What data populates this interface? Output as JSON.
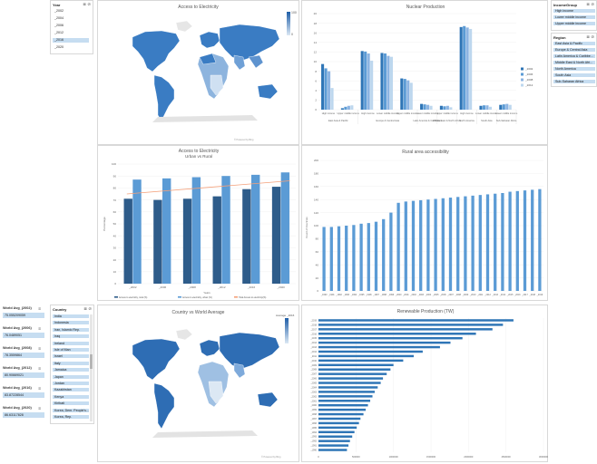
{
  "year_slicer": {
    "title": "Year",
    "items": [
      "_2002",
      "_2004",
      "_2006",
      "_2012",
      "_2016",
      "_2020"
    ],
    "selected_index": 4
  },
  "income_slicer": {
    "title": "IncomeGroup",
    "items": [
      "High income",
      "Lower middle income",
      "Upper middle income"
    ]
  },
  "region_slicer": {
    "title": "Region",
    "items": [
      "East Asia & Pacific",
      "Europe & Central Asia",
      "Latin America & Caribbe...",
      "Middle East & North Afri...",
      "North America",
      "South Asia",
      "Sub-Saharan Africa"
    ]
  },
  "country_slicer": {
    "title": "Country",
    "items": [
      "India",
      "Indonesia",
      "Iran, Islamic Rep.",
      "Iraq",
      "Ireland",
      "Isle of Man",
      "Israel",
      "Italy",
      "Jamaica",
      "Japan",
      "Jordan",
      "Kazakhstan",
      "Kenya",
      "Kiribati",
      "Korea, Dem. People's...",
      "Korea, Rep."
    ]
  },
  "world_avg_cards": [
    {
      "label": "World Avg_(2002)",
      "value": "75.055209059"
    },
    {
      "label": "World Avg_(2006)",
      "value": "76.0489051"
    },
    {
      "label": "World Avg_(2008)",
      "value": "78.3559864"
    },
    {
      "label": "World Avg_(2012)",
      "value": "80.90669021"
    },
    {
      "label": "World Avg_(2016)",
      "value": "83.87228544"
    },
    {
      "label": "World Avg_(2020)",
      "value": "86.63117828"
    }
  ],
  "map_top": {
    "title": "Access to Electricity",
    "legend_max": "100",
    "legend_min": "0"
  },
  "map_bottom": {
    "title": "Country vs World Average",
    "legend_label": "Average _2016"
  },
  "map_credit": "© Powered by Bing",
  "colors": {
    "primary": "#2e75b6",
    "light": "#9dc3e6",
    "dark": "#1f4e79",
    "trend": "#f4a07a",
    "select": "#c6ddf1"
  },
  "charts": {
    "nuclear": {
      "type": "bar",
      "title": "Nuclear Production",
      "categories": [
        "High income",
        "Upper middle income",
        "High income",
        "Lower middle income",
        "Upper middle income",
        "Lower middle income",
        "Upper middle income",
        "High income",
        "Lower middle income",
        "Lower middle income"
      ],
      "groups": [
        "East Asia & Pacific",
        "Europe & Central Asia",
        "Latin America & Caribbean",
        "Middle East & North Africa",
        "North America",
        "South Asia",
        "Sub-Saharan Africa"
      ],
      "group_spans": [
        2,
        3,
        1,
        1,
        1,
        1,
        1
      ],
      "series": [
        {
          "name": "_2002",
          "values": [
            9.5,
            0.3,
            12.2,
            11.8,
            6.5,
            1.2,
            0.8,
            17.2,
            0.8,
            1.0
          ]
        },
        {
          "name": "_2006",
          "values": [
            8.6,
            0.6,
            12.1,
            11.7,
            6.4,
            1.1,
            0.7,
            17.4,
            0.9,
            1.1
          ]
        },
        {
          "name": "_2008",
          "values": [
            8.0,
            0.8,
            11.7,
            11.2,
            6.1,
            1.0,
            0.8,
            17.1,
            0.9,
            1.2
          ]
        },
        {
          "name": "_2012",
          "values": [
            4.5,
            0.9,
            10.2,
            11.0,
            5.6,
            0.8,
            0.5,
            16.8,
            0.6,
            1.0
          ]
        }
      ],
      "yticks": [
        0,
        2,
        4,
        6,
        8,
        10,
        12,
        14,
        16,
        18,
        20
      ],
      "ylim": [
        0,
        20
      ]
    },
    "access_urban_rural": {
      "type": "bar",
      "title": "Access to Electricity",
      "subtitle": "Urban vs Rural",
      "categories": [
        "_2002",
        "_2006",
        "_2008",
        "_2012",
        "_2016",
        "_2020"
      ],
      "series": [
        {
          "name": "Access to electricity, rural (%)",
          "values": [
            71,
            70,
            71,
            73,
            79,
            81
          ]
        },
        {
          "name": "Access to electricity, urban (%)",
          "values": [
            87,
            88,
            89,
            90,
            91,
            93
          ]
        }
      ],
      "trend": {
        "name": "Total Access to electricity(%)",
        "start": 75,
        "end": 86
      },
      "ylim": [
        0,
        100
      ],
      "yticks": [
        0,
        10,
        20,
        30,
        40,
        50,
        60,
        70,
        80,
        90,
        100
      ],
      "xlabel": "Years",
      "ylabel": "Percentage"
    },
    "rural_access": {
      "type": "bar",
      "title": "Rural area accessibility",
      "years": [
        "1990",
        "1991",
        "1992",
        "1993",
        "1994",
        "1995",
        "1996",
        "1997",
        "1998",
        "1999",
        "2000",
        "2001",
        "2002",
        "2003",
        "2004",
        "2005",
        "2006",
        "2007",
        "2008",
        "2009",
        "2010",
        "2011",
        "2012",
        "2013",
        "2014",
        "2015",
        "2016",
        "2017",
        "2018",
        "2019"
      ],
      "x_tick_labels": [
        "_1990",
        "_1991",
        "_1992",
        "_1993",
        "_1994",
        "_1995",
        "_1996",
        "_1997",
        "_1998",
        "_1999",
        "_2000",
        "_2001",
        "_2002",
        "_2003",
        "_2004",
        "_2005",
        "_2006",
        "_2007",
        "_2008",
        "_2009",
        "_2010",
        "_2011",
        "_2012",
        "_2013",
        "_2014",
        "_2015",
        "_2016",
        "_2017",
        "_2018",
        "_2019"
      ],
      "values": [
        98,
        98,
        99,
        100,
        101,
        103,
        104,
        106,
        110,
        120,
        135,
        137,
        138,
        139,
        140,
        141,
        142,
        143,
        144,
        145,
        146,
        147,
        148,
        149,
        150,
        152,
        153,
        154,
        155,
        156
      ],
      "ylim": [
        0,
        200
      ],
      "yticks": [
        0,
        20,
        40,
        60,
        80,
        100,
        120,
        140,
        160,
        180,
        200
      ],
      "ylabel": "Count of Countries"
    },
    "renewable": {
      "type": "bar",
      "title": "Renewable Production (TW)",
      "categories": [
        "_2019",
        "_2018",
        "_2017",
        "_2016",
        "_2015",
        "_2014",
        "_2013",
        "_2012",
        "_2011",
        "_2010",
        "_2009",
        "_2008",
        "_2007",
        "_2006",
        "_2005",
        "_2004",
        "_2003",
        "_2002",
        "_2001",
        "_2000",
        "_1999",
        "_1998",
        "_1997",
        "_1996",
        "_1995",
        "_1994",
        "_1993",
        "_1992",
        "_1991",
        "_1990"
      ],
      "values": [
        2600000,
        2460000,
        2320000,
        2100000,
        1920000,
        1760000,
        1620000,
        1390000,
        1270000,
        1130000,
        1000000,
        960000,
        910000,
        860000,
        830000,
        790000,
        750000,
        720000,
        690000,
        660000,
        630000,
        600000,
        560000,
        540000,
        510000,
        480000,
        450000,
        420000,
        400000,
        380000
      ],
      "xlim": [
        0,
        3000000
      ],
      "xticks": [
        "0",
        "500000",
        "1000000",
        "1500000",
        "2000000",
        "2500000",
        "3000000"
      ]
    }
  }
}
